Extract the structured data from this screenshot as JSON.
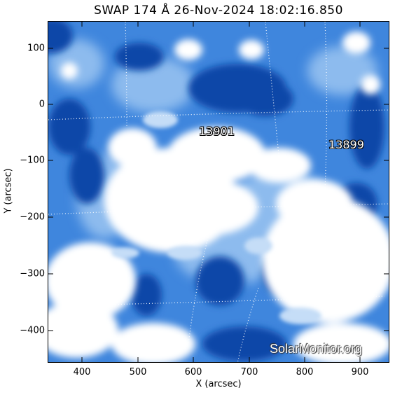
{
  "title": "SWAP 174 Å 26-Nov-2024 18:02:16.850",
  "axes": {
    "xlabel": "X (arcsec)",
    "ylabel": "Y (arcsec)",
    "x_ticks": [
      "400",
      "500",
      "600",
      "700",
      "800",
      "900"
    ],
    "y_ticks": [
      "100",
      "0",
      "−100",
      "−200",
      "−300",
      "−400"
    ]
  },
  "regions": [
    {
      "number": "13901"
    },
    {
      "number": "13899"
    }
  ],
  "watermark": "SolarMonitor.org",
  "colors": {
    "deep_blue": "#0a3f9e",
    "mid_blue": "#3b7fdc",
    "light_blue": "#a9ccf3",
    "bright": "#ffffff"
  }
}
